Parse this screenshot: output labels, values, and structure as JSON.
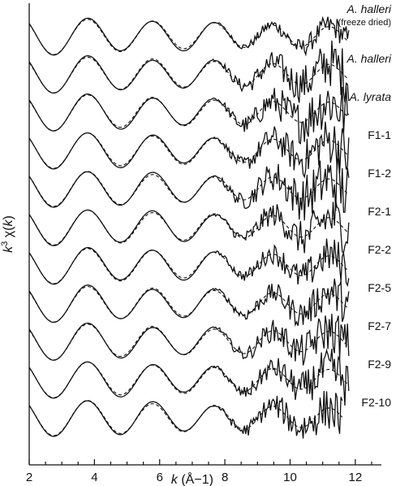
{
  "chart_data": {
    "type": "line",
    "xlabel": {
      "symbol": "k",
      "unit": " (Å−1)"
    },
    "ylabel": {
      "prefix": "k",
      "sup": "3",
      "chi": " χ(",
      "arg": "k",
      "close": ")"
    },
    "xlim": [
      2,
      12.8
    ],
    "xticks": [
      2,
      4,
      6,
      8,
      10,
      12
    ],
    "xtick_labels": [
      "2",
      "4",
      "6",
      "8",
      "10",
      "12"
    ],
    "line_styles": {
      "experimental": "solid",
      "fit": "dashed"
    },
    "colors": {
      "line": "#111111",
      "axis": "#111111"
    },
    "series": [
      {
        "name": "A. halleri",
        "sublabel": "(freeze dried)",
        "italic": true,
        "noise": 0.08
      },
      {
        "name": "A. halleri",
        "sublabel": "",
        "italic": true,
        "noise": 0.17
      },
      {
        "name": "A. lyrata",
        "sublabel": "",
        "italic": true,
        "noise": 0.2
      },
      {
        "name": "F1-1",
        "sublabel": "",
        "italic": false,
        "noise": 0.17
      },
      {
        "name": "F1-2",
        "sublabel": "",
        "italic": false,
        "noise": 0.2
      },
      {
        "name": "F2-1",
        "sublabel": "",
        "italic": false,
        "noise": 0.16
      },
      {
        "name": "F2-2",
        "sublabel": "",
        "italic": false,
        "noise": 0.13
      },
      {
        "name": "F2-5",
        "sublabel": "",
        "italic": false,
        "noise": 0.13
      },
      {
        "name": "F2-7",
        "sublabel": "",
        "italic": false,
        "noise": 0.15
      },
      {
        "name": "F2-9",
        "sublabel": "",
        "italic": false,
        "noise": 0.15
      },
      {
        "name": "F2-10",
        "sublabel": "",
        "italic": false,
        "noise": 0.15
      }
    ],
    "k_max": [
      11.8,
      11.8,
      11.8,
      11.8,
      11.8,
      11.8,
      11.8,
      11.8,
      11.8,
      11.8,
      11.6
    ],
    "grid": false,
    "legend": "labels at right end of each stacked curve"
  }
}
